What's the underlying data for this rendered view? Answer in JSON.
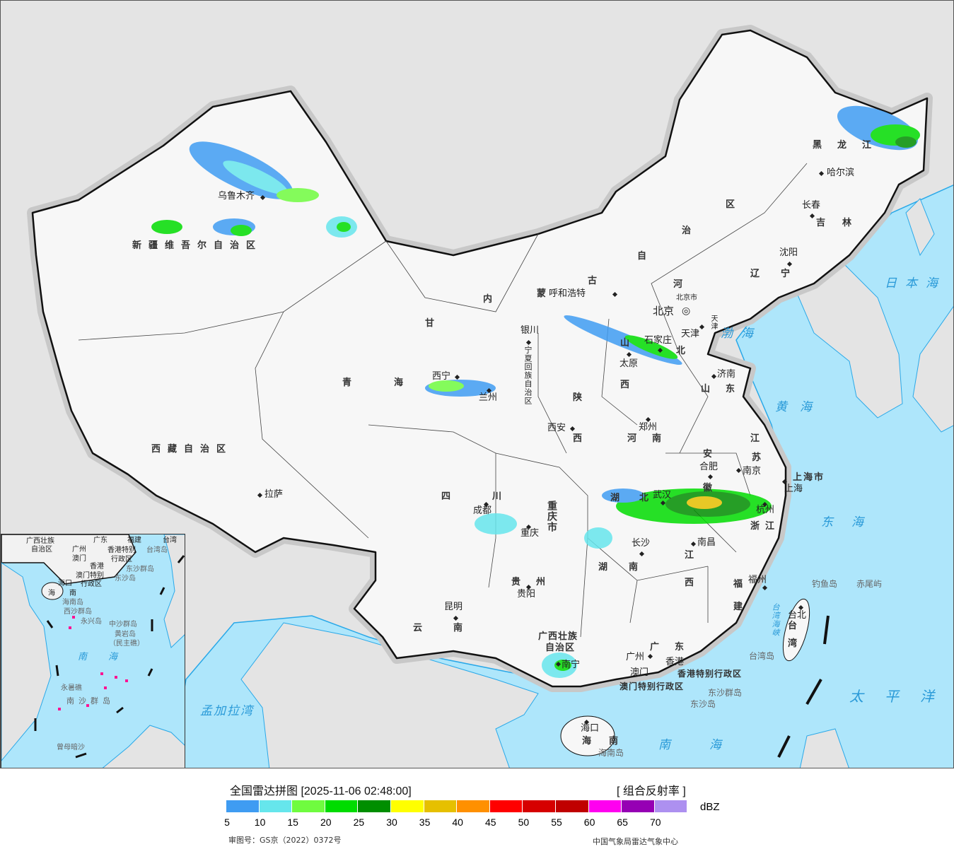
{
  "header": {
    "title": "全国雷达拼图 [2025-11-06 02:48:00]",
    "product": "[ 组合反射率 ]"
  },
  "legend": {
    "unit": "dBZ",
    "colors": [
      "#3f9cf2",
      "#66e6ec",
      "#6ffc3f",
      "#00dc00",
      "#008e00",
      "#ffff00",
      "#e6c000",
      "#ff9000",
      "#ff0000",
      "#d60000",
      "#c00000",
      "#ff00f0",
      "#9600b4",
      "#ad90f0"
    ],
    "ticks": [
      "5",
      "10",
      "15",
      "20",
      "25",
      "30",
      "35",
      "40",
      "45",
      "50",
      "55",
      "60",
      "65",
      "70"
    ]
  },
  "footer": {
    "approval": "审图号：GS京（2022）0372号",
    "source": "中国气象局雷达气象中心"
  },
  "map": {
    "provinces": {
      "xinjiang": "新疆维吾尔自治区",
      "xizang": "西藏自治区",
      "qing": "青",
      "hai": "海",
      "gan": "甘",
      "nei": "内",
      "meng": "蒙",
      "gu": "古",
      "zi": "自",
      "zhi": "治",
      "qu": "区",
      "heilongjiang": "黑龙江",
      "jilin": "吉林",
      "liaoning": "辽宁",
      "he_bei1": "河",
      "he_bei2": "北",
      "shan1": "山",
      "xi1": "西",
      "shandong": "山东",
      "shaan": "陕",
      "shaan2": "西",
      "henan": "河南",
      "jiang": "江",
      "su": "苏",
      "an": "安",
      "hui": "徽",
      "zhejiang": "浙江",
      "hu1": "湖",
      "bei": "北",
      "si": "四",
      "chuan": "川",
      "chongqing": "重庆市",
      "hunan1": "湖",
      "hunan2": "南",
      "jiangxi1": "江",
      "jiangxi2": "西",
      "fu": "福",
      "jian": "建",
      "guizhou": "贵州",
      "yun": "云",
      "nan": "南",
      "guangxi1": "广西壮族",
      "guangxi2": "自治区",
      "guangdong": "广东",
      "hainan1": "海",
      "hainan2": "南",
      "taiwan1": "台",
      "taiwan2": "湾",
      "ningxia": "宁夏回族自治区",
      "shanghai": "上海市",
      "beijing_city": "北京市",
      "tianjin_city": "天津",
      "hk": "香港特别行政区",
      "macau": "澳门特别行政区"
    },
    "cities": {
      "urumqi": "乌鲁木齐",
      "lhasa": "拉萨",
      "xining": "西宁",
      "lanzhou": "兰州",
      "yinchuan": "银川",
      "hohhot": "呼和浩特",
      "harbin": "哈尔滨",
      "changchun": "长春",
      "shenyang": "沈阳",
      "beijing": "北京",
      "tianjin": "天津",
      "shijiazhuang": "石家庄",
      "taiyuan": "太原",
      "jinan": "济南",
      "xian": "西安",
      "zhengzhou": "郑州",
      "hefei": "合肥",
      "nanjing": "南京",
      "shanghai": "上海",
      "hangzhou": "杭州",
      "wuhan": "武汉",
      "chengdu": "成都",
      "chongqing": "重庆",
      "changsha": "长沙",
      "nanchang": "南昌",
      "fuzhou": "福州",
      "guiyang": "贵阳",
      "kunming": "昆明",
      "nanning": "南宁",
      "guangzhou": "广州",
      "macau": "澳门",
      "hongkong": "香港",
      "haikou": "海口",
      "taipei": "台北"
    },
    "islands": {
      "dongsha_qundao": "东沙群岛",
      "dongsha_dao": "东沙岛",
      "hainan_dao": "海南岛",
      "taiwan_dao": "台湾岛",
      "diaoyu": "钓鱼岛",
      "chiwei": "赤尾屿"
    },
    "seas": {
      "japan": "日本海",
      "bohai": "渤海",
      "huanghai": "黄海",
      "donghai": "东海",
      "taiping": "太平洋",
      "nanhai": "南海",
      "bengal": "孟加拉湾",
      "strait": "台湾海峡"
    },
    "inset": {
      "guangxi": "广西壮族",
      "guangxi2": "自治区",
      "guangdong": "广东",
      "fujian": "福建",
      "taiwan": "台湾",
      "guangzhou": "广州",
      "macau": "澳门",
      "hongkong": "香港",
      "hk": "香港特别",
      "hk2": "行政区",
      "mo": "澳门特别",
      "mo2": "行政区",
      "taiwan_dao": "台湾岛",
      "dongsha": "东沙群岛",
      "dongsha_dao": "东沙岛",
      "haikou": "海口",
      "hai": "海",
      "nan": "南",
      "hainan_dao": "海南岛",
      "xisha": "西沙群岛",
      "yongxing": "永兴岛",
      "zhongsha": "中沙群岛",
      "huangyan": "黄岩岛",
      "minzhu": "（民主礁）",
      "nanhai": "南海",
      "yongshu": "永暑礁",
      "nansha": "南沙群岛",
      "zengmu": "曾母暗沙"
    }
  }
}
